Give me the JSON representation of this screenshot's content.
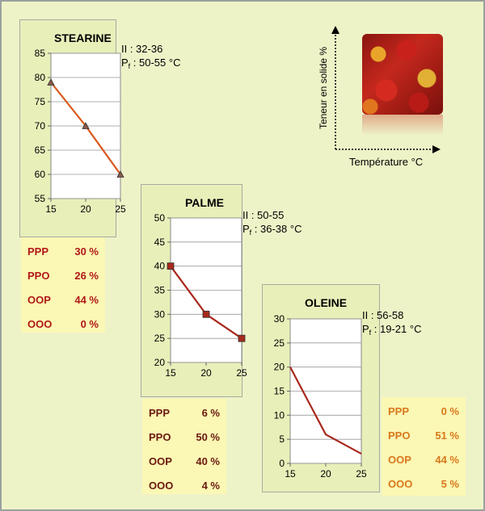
{
  "legend": {
    "ylabel": "Teneur en solide %",
    "xlabel": "Température °C",
    "image_icon": "palm-fruit-photo"
  },
  "chart_data": [
    {
      "type": "line",
      "title": "STEARINE",
      "info_ii": "II  :  32-36",
      "info_pf_label": "P",
      "info_pf_sub": "f",
      "info_pf_value": " : 50-55 °C",
      "x": [
        15,
        20,
        25
      ],
      "y": [
        79,
        70,
        60
      ],
      "xticks": [
        15,
        20,
        25
      ],
      "yticks": [
        55,
        60,
        65,
        70,
        75,
        80,
        85
      ],
      "xlim": [
        15,
        25
      ],
      "ylim": [
        55,
        85
      ],
      "marker": "triangle",
      "line_color": "#d85a1e",
      "marker_color": "#8a5a4a",
      "grid": true
    },
    {
      "type": "line",
      "title": "PALME",
      "info_ii": "II  :  50-55",
      "info_pf_label": "P",
      "info_pf_sub": "f",
      "info_pf_value": " : 36-38 °C",
      "x": [
        15,
        20,
        25
      ],
      "y": [
        40,
        30,
        25
      ],
      "xticks": [
        15,
        20,
        25
      ],
      "yticks": [
        20,
        25,
        30,
        35,
        40,
        45,
        50
      ],
      "xlim": [
        15,
        25
      ],
      "ylim": [
        20,
        50
      ],
      "marker": "square",
      "line_color": "#a8281c",
      "marker_color": "#a8281c",
      "grid": true
    },
    {
      "type": "line",
      "title": "OLEINE",
      "info_ii": "II  :  56-58",
      "info_pf_label": "P",
      "info_pf_sub": "f",
      "info_pf_value": " : 19-21 °C",
      "x": [
        15,
        20,
        25
      ],
      "y": [
        20,
        6,
        2
      ],
      "xticks": [
        15,
        20,
        25
      ],
      "yticks": [
        0,
        5,
        10,
        15,
        20,
        25,
        30
      ],
      "xlim": [
        15,
        25
      ],
      "ylim": [
        0,
        30
      ],
      "marker": "none",
      "line_color": "#a8281c",
      "marker_color": "#a8281c",
      "grid": true
    }
  ],
  "compositions": {
    "stearine": {
      "color": "#b01818",
      "rows": [
        {
          "code": "PPP",
          "pct": "30 %"
        },
        {
          "code": "PPO",
          "pct": "26 %"
        },
        {
          "code": "OOP",
          "pct": "44 %"
        },
        {
          "code": "OOO",
          "pct": "0 %"
        }
      ]
    },
    "palme": {
      "color": "#6a1a10",
      "rows": [
        {
          "code": "PPP",
          "pct": "6 %"
        },
        {
          "code": "PPO",
          "pct": "50 %"
        },
        {
          "code": "OOP",
          "pct": "40 %"
        },
        {
          "code": "OOO",
          "pct": "4 %"
        }
      ]
    },
    "oleine": {
      "color": "#d8781c",
      "rows": [
        {
          "code": "PPP",
          "pct": "0 %"
        },
        {
          "code": "PPO",
          "pct": "51 %"
        },
        {
          "code": "OOP",
          "pct": "44 %"
        },
        {
          "code": "OOO",
          "pct": "5 %"
        }
      ]
    }
  }
}
